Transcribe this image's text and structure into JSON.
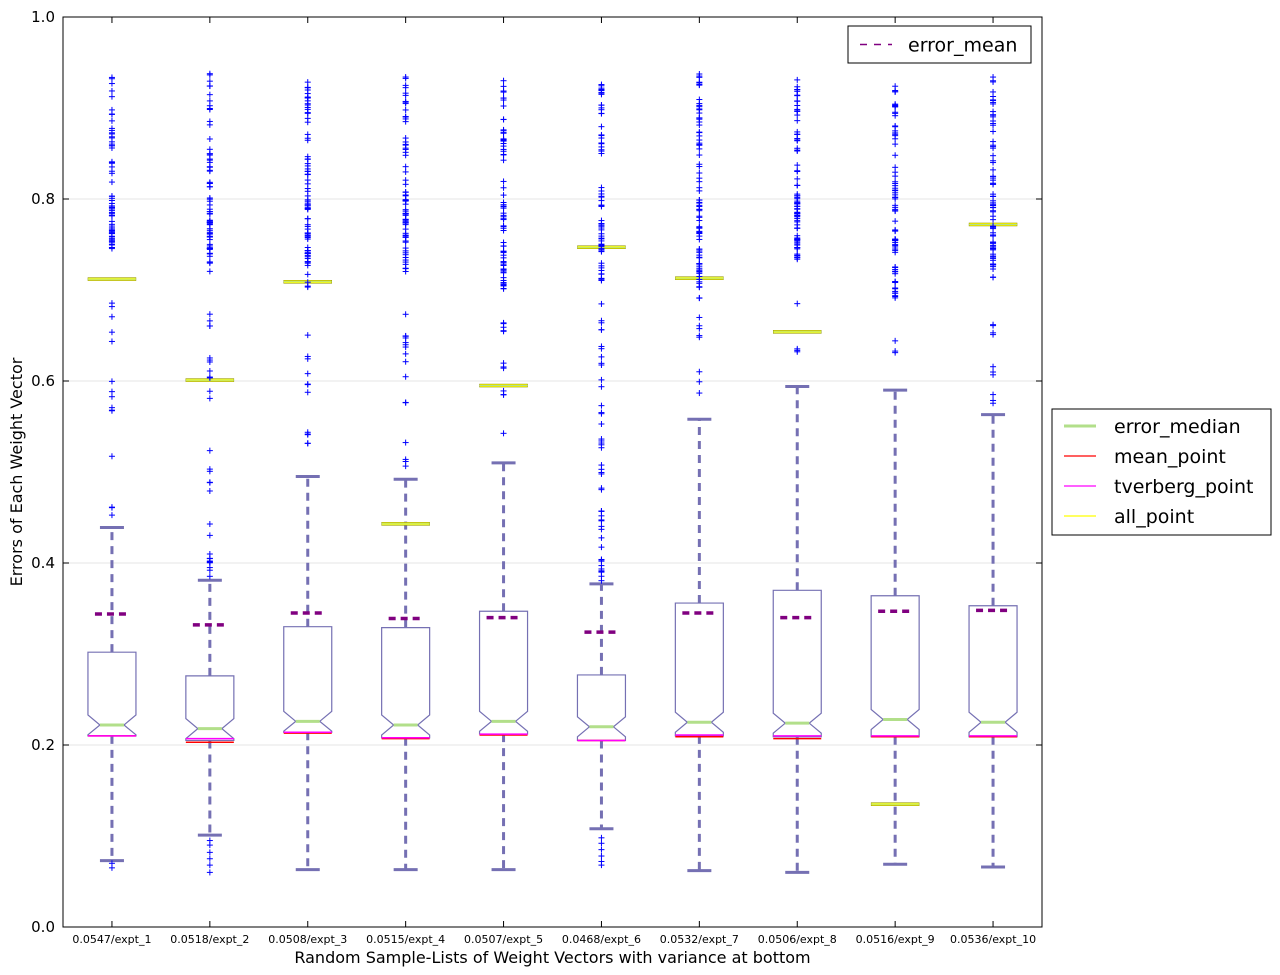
{
  "chart_data": {
    "type": "box",
    "title": "",
    "xlabel": "Random Sample-Lists of Weight Vectors with variance at bottom",
    "ylabel": "Errors of Each Weight Vector",
    "ylim": [
      0.0,
      1.0
    ],
    "yticks": [
      {
        "value": 0.0,
        "label": "0.0"
      },
      {
        "value": 0.2,
        "label": "0.2"
      },
      {
        "value": 0.4,
        "label": "0.4"
      },
      {
        "value": 0.6,
        "label": "0.6"
      },
      {
        "value": 0.8,
        "label": "0.8"
      },
      {
        "value": 1.0,
        "label": "1.0"
      }
    ],
    "grid": "horizontal",
    "categories": [
      "0.0547/expt_1",
      "0.0518/expt_2",
      "0.0508/expt_3",
      "0.0515/expt_4",
      "0.0507/expt_5",
      "0.0468/expt_6",
      "0.0532/expt_7",
      "0.0506/expt_8",
      "0.0516/expt_9",
      "0.0536/expt_10"
    ],
    "boxes": [
      {
        "whisker_low": 0.073,
        "q1": 0.21,
        "median": 0.222,
        "q3": 0.302,
        "whisker_high": 0.439,
        "mean": 0.344,
        "mean_point": 0.21,
        "tverberg_point": 0.21,
        "all_point": 0.712,
        "fliers_low": [
          0.065,
          0.07
        ],
        "flier_clusters": [
          {
            "lo": 0.445,
            "hi": 0.47,
            "n": 3
          },
          {
            "lo": 0.5,
            "hi": 0.6,
            "n": 7
          },
          {
            "lo": 0.63,
            "hi": 0.7,
            "n": 5
          },
          {
            "lo": 0.74,
            "hi": 0.8,
            "n": 40
          },
          {
            "lo": 0.8,
            "hi": 0.94,
            "n": 30
          }
        ]
      },
      {
        "whisker_low": 0.101,
        "q1": 0.205,
        "median": 0.218,
        "q3": 0.276,
        "whisker_high": 0.381,
        "mean": 0.332,
        "mean_point": 0.203,
        "tverberg_point": 0.207,
        "all_point": 0.601,
        "fliers_low": [
          0.06,
          0.068,
          0.075,
          0.082,
          0.09,
          0.095
        ],
        "flier_clusters": [
          {
            "lo": 0.385,
            "hi": 0.41,
            "n": 10
          },
          {
            "lo": 0.42,
            "hi": 0.54,
            "n": 8
          },
          {
            "lo": 0.58,
            "hi": 0.68,
            "n": 12
          },
          {
            "lo": 0.72,
            "hi": 0.8,
            "n": 40
          },
          {
            "lo": 0.8,
            "hi": 0.94,
            "n": 30
          }
        ]
      },
      {
        "whisker_low": 0.063,
        "q1": 0.214,
        "median": 0.226,
        "q3": 0.33,
        "whisker_high": 0.495,
        "mean": 0.345,
        "mean_point": 0.213,
        "tverberg_point": 0.214,
        "all_point": 0.709,
        "fliers_low": [],
        "flier_clusters": [
          {
            "lo": 0.5,
            "hi": 0.56,
            "n": 5
          },
          {
            "lo": 0.585,
            "hi": 0.67,
            "n": 7
          },
          {
            "lo": 0.7,
            "hi": 0.8,
            "n": 40
          },
          {
            "lo": 0.8,
            "hi": 0.935,
            "n": 35
          }
        ]
      },
      {
        "whisker_low": 0.063,
        "q1": 0.208,
        "median": 0.222,
        "q3": 0.329,
        "whisker_high": 0.492,
        "mean": 0.339,
        "mean_point": 0.207,
        "tverberg_point": 0.208,
        "all_point": 0.443,
        "fliers_low": [],
        "flier_clusters": [
          {
            "lo": 0.505,
            "hi": 0.54,
            "n": 4
          },
          {
            "lo": 0.56,
            "hi": 0.7,
            "n": 12
          },
          {
            "lo": 0.72,
            "hi": 0.8,
            "n": 40
          },
          {
            "lo": 0.8,
            "hi": 0.935,
            "n": 30
          }
        ]
      },
      {
        "whisker_low": 0.063,
        "q1": 0.212,
        "median": 0.226,
        "q3": 0.347,
        "whisker_high": 0.51,
        "mean": 0.34,
        "mean_point": 0.211,
        "tverberg_point": 0.212,
        "all_point": 0.595,
        "fliers_low": [],
        "flier_clusters": [
          {
            "lo": 0.54,
            "hi": 0.545,
            "n": 1
          },
          {
            "lo": 0.58,
            "hi": 0.64,
            "n": 6
          },
          {
            "lo": 0.65,
            "hi": 0.7,
            "n": 5
          },
          {
            "lo": 0.7,
            "hi": 0.8,
            "n": 40
          },
          {
            "lo": 0.8,
            "hi": 0.935,
            "n": 30
          }
        ]
      },
      {
        "whisker_low": 0.108,
        "q1": 0.205,
        "median": 0.22,
        "q3": 0.277,
        "whisker_high": 0.377,
        "mean": 0.324,
        "mean_point": 0.205,
        "tverberg_point": 0.205,
        "all_point": 0.747,
        "fliers_low": [
          0.068,
          0.072,
          0.078,
          0.085,
          0.092,
          0.098
        ],
        "flier_clusters": [
          {
            "lo": 0.38,
            "hi": 0.46,
            "n": 20
          },
          {
            "lo": 0.46,
            "hi": 0.56,
            "n": 12
          },
          {
            "lo": 0.56,
            "hi": 0.69,
            "n": 15
          },
          {
            "lo": 0.71,
            "hi": 0.815,
            "n": 40
          },
          {
            "lo": 0.84,
            "hi": 0.935,
            "n": 25
          }
        ]
      },
      {
        "whisker_low": 0.062,
        "q1": 0.21,
        "median": 0.225,
        "q3": 0.356,
        "whisker_high": 0.558,
        "mean": 0.345,
        "mean_point": 0.209,
        "tverberg_point": 0.211,
        "all_point": 0.713,
        "fliers_low": [],
        "flier_clusters": [
          {
            "lo": 0.585,
            "hi": 0.67,
            "n": 8
          },
          {
            "lo": 0.69,
            "hi": 0.8,
            "n": 45
          },
          {
            "lo": 0.8,
            "hi": 0.94,
            "n": 35
          }
        ]
      },
      {
        "whisker_low": 0.06,
        "q1": 0.209,
        "median": 0.224,
        "q3": 0.37,
        "whisker_high": 0.594,
        "mean": 0.34,
        "mean_point": 0.207,
        "tverberg_point": 0.21,
        "all_point": 0.654,
        "fliers_low": [],
        "flier_clusters": [
          {
            "lo": 0.63,
            "hi": 0.64,
            "n": 3
          },
          {
            "lo": 0.68,
            "hi": 0.69,
            "n": 1
          },
          {
            "lo": 0.73,
            "hi": 0.8,
            "n": 40
          },
          {
            "lo": 0.8,
            "hi": 0.935,
            "n": 35
          }
        ]
      },
      {
        "whisker_low": 0.069,
        "q1": 0.209,
        "median": 0.228,
        "q3": 0.364,
        "whisker_high": 0.59,
        "mean": 0.347,
        "mean_point": 0.209,
        "tverberg_point": 0.21,
        "all_point": 0.135,
        "fliers_low": [],
        "flier_clusters": [
          {
            "lo": 0.62,
            "hi": 0.67,
            "n": 3
          },
          {
            "lo": 0.69,
            "hi": 0.8,
            "n": 40
          },
          {
            "lo": 0.8,
            "hi": 0.94,
            "n": 35
          }
        ]
      },
      {
        "whisker_low": 0.066,
        "q1": 0.209,
        "median": 0.225,
        "q3": 0.353,
        "whisker_high": 0.563,
        "mean": 0.348,
        "mean_point": 0.209,
        "tverberg_point": 0.21,
        "all_point": 0.772,
        "fliers_low": [],
        "flier_clusters": [
          {
            "lo": 0.57,
            "hi": 0.62,
            "n": 6
          },
          {
            "lo": 0.65,
            "hi": 0.69,
            "n": 4
          },
          {
            "lo": 0.71,
            "hi": 0.8,
            "n": 40
          },
          {
            "lo": 0.8,
            "hi": 0.94,
            "n": 35
          }
        ]
      }
    ],
    "legend_top": {
      "placement": "top-right-inside",
      "entries": [
        {
          "name": "error_mean",
          "color": "#800080",
          "style": "dashed"
        }
      ]
    },
    "legend_side": {
      "placement": "right-outside",
      "entries": [
        {
          "name": "error_median",
          "color": "#b2df8a",
          "style": "solid-thick"
        },
        {
          "name": "mean_point",
          "color": "#ff0000",
          "style": "solid"
        },
        {
          "name": "tverberg_point",
          "color": "#ff00ff",
          "style": "solid"
        },
        {
          "name": "all_point",
          "color": "#ffff00",
          "style": "solid"
        }
      ]
    },
    "colors": {
      "box": "#7570b3",
      "whisker": "#7570b3",
      "flier": "#0000ff",
      "error_mean": "#800080",
      "error_median": "#b2df8a",
      "mean_point": "#ff0000",
      "tverberg_point": "#ff00ff",
      "all_point": "#ffff00",
      "grid": "#e6e6e6"
    }
  }
}
